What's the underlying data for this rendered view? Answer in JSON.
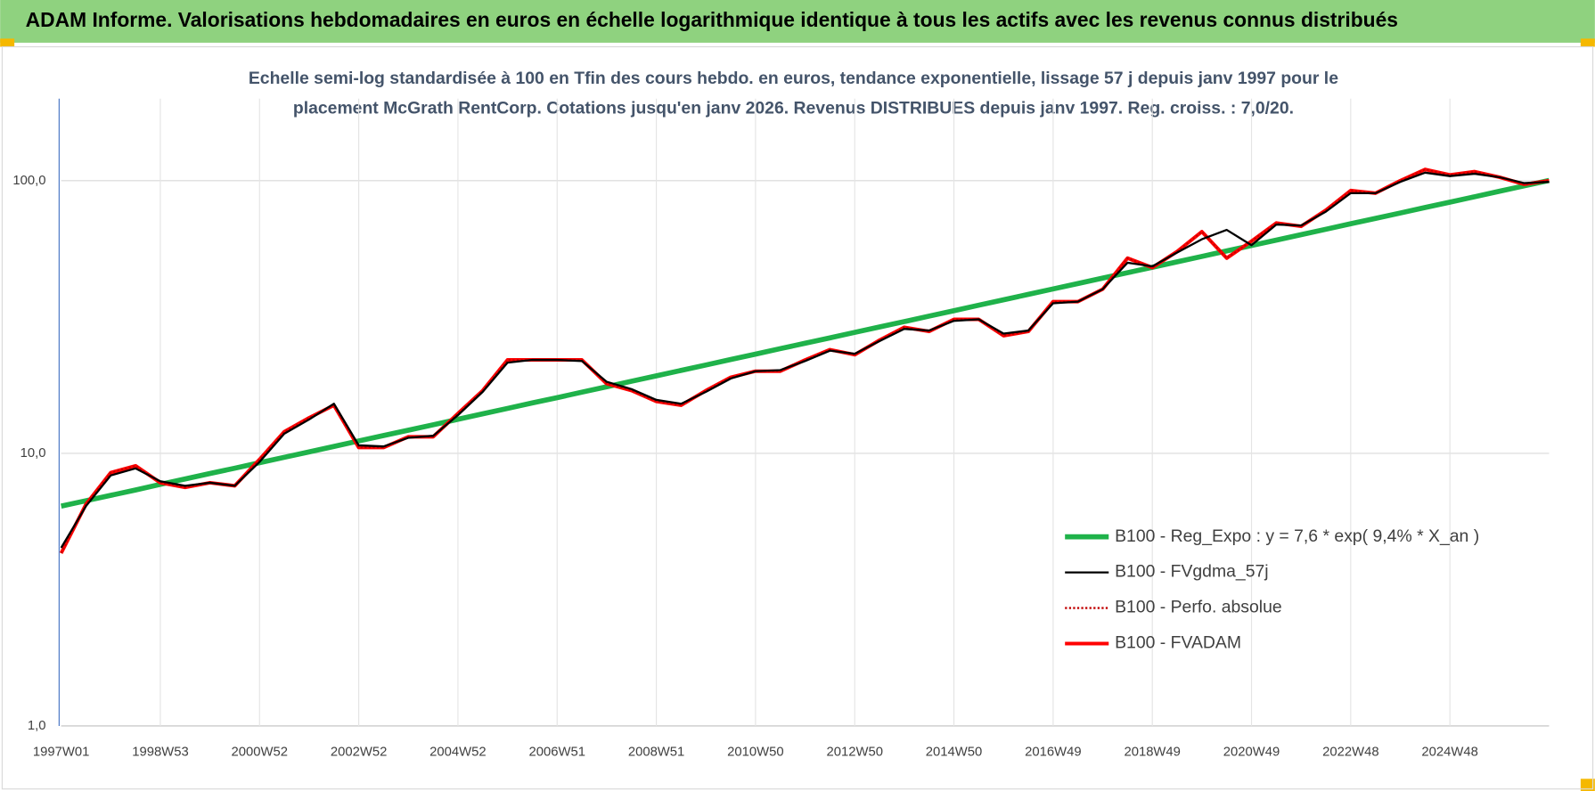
{
  "chart_data": {
    "type": "line",
    "title": "ADAM Informe. Valorisations hebdomadaires en euros en échelle logarithmique identique à tous les actifs avec les revenus connus distribués",
    "subtitle": [
      "Echelle semi-log standardisée à 100 en Tfin des cours hebdo. en euros, tendance exponentielle, lissage 57 j depuis janv 1997 pour le",
      "placement McGrath RentCorp. Cotations jusqu'en janv 2026. Revenus DISTRIBUES depuis janv 1997. Reg. croiss. : 7,0/20."
    ],
    "log_y": true,
    "grid": true,
    "legend": "lower right",
    "ylim": [
      1,
      200
    ],
    "yticks": [
      {
        "value": 1,
        "label": "1,0"
      },
      {
        "value": 10,
        "label": "10,0"
      },
      {
        "value": 100,
        "label": "100,0"
      }
    ],
    "categories": [
      "1997W01",
      null,
      null,
      null,
      "1998W53",
      null,
      null,
      null,
      "2000W52",
      null,
      null,
      null,
      "2002W52",
      null,
      null,
      null,
      "2004W52",
      null,
      null,
      null,
      "2006W51",
      null,
      null,
      null,
      "2008W51",
      null,
      null,
      null,
      "2010W50",
      null,
      null,
      null,
      "2012W50",
      null,
      null,
      null,
      "2014W50",
      null,
      null,
      null,
      "2016W49",
      null,
      null,
      null,
      "2018W49",
      null,
      null,
      null,
      "2020W49",
      null,
      null,
      null,
      "2022W48",
      null,
      null,
      null,
      "2024W48",
      null,
      null,
      null,
      null
    ],
    "series": [
      {
        "name": "B100 - Reg_Expo : y = 7,6 * exp( 9,4% *  X_an )",
        "color": "#1fb24a",
        "values": [
          6.4,
          6.7,
          7.01,
          7.34,
          7.69,
          8.05,
          8.43,
          8.82,
          9.24,
          9.67,
          10.12,
          10.6,
          11.1,
          11.62,
          12.16,
          12.73,
          13.33,
          13.96,
          14.61,
          15.3,
          16.01,
          16.77,
          17.55,
          18.38,
          19.24,
          20.14,
          21.09,
          22.08,
          23.11,
          24.2,
          25.33,
          26.52,
          27.77,
          29.07,
          30.43,
          31.86,
          33.36,
          34.92,
          36.56,
          38.28,
          40.07,
          41.95,
          43.92,
          45.98,
          48.14,
          50.4,
          52.76,
          55.24,
          57.83,
          60.54,
          63.38,
          66.35,
          69.47,
          72.72,
          76.13,
          79.7,
          83.44,
          87.36,
          91.45,
          95.74,
          100.2
        ]
      },
      {
        "name": "B100 - FVgdma_57j",
        "color": "#000000",
        "values": [
          4.5,
          6.4,
          8.3,
          8.8,
          7.9,
          7.6,
          7.8,
          7.6,
          9.3,
          11.8,
          13.3,
          15.2,
          10.7,
          10.6,
          11.4,
          11.6,
          13.8,
          16.8,
          21.5,
          22,
          22,
          21.8,
          18.3,
          17.2,
          15.7,
          15.2,
          16.8,
          18.8,
          20,
          20.2,
          21.8,
          23.8,
          23.2,
          25.8,
          28.6,
          28.2,
          30.6,
          31,
          27.5,
          28.2,
          35.5,
          36,
          40,
          50,
          48.5,
          54.5,
          61,
          66,
          58,
          69,
          68.5,
          77,
          90,
          90,
          99,
          107,
          104,
          106,
          103,
          98,
          99
        ]
      },
      {
        "name": "B100 - Perfo. absolue",
        "color": "#c00000",
        "dash": "dotted",
        "values": [
          4.3,
          6.5,
          8.5,
          9,
          7.8,
          7.5,
          7.8,
          7.6,
          9.5,
          12,
          13.5,
          15,
          10.5,
          10.5,
          11.5,
          11.5,
          14,
          17,
          22,
          22,
          22,
          22,
          18,
          17,
          15.5,
          15,
          17,
          19,
          20,
          20,
          22,
          24,
          23,
          26,
          29,
          28,
          31,
          31,
          27,
          28,
          36,
          36,
          40,
          52,
          48,
          55,
          65,
          52,
          60,
          70,
          68,
          78,
          92,
          90,
          100,
          110,
          105,
          108,
          103,
          97,
          100
        ]
      },
      {
        "name": "B100 - FVADAM",
        "color": "#ff0000",
        "values": [
          4.3,
          6.5,
          8.5,
          9,
          7.8,
          7.5,
          7.8,
          7.6,
          9.5,
          12,
          13.5,
          15,
          10.5,
          10.5,
          11.5,
          11.5,
          14,
          17,
          22,
          22,
          22,
          22,
          18,
          17,
          15.5,
          15,
          17,
          19,
          20,
          20,
          22,
          24,
          23,
          26,
          29,
          28,
          31,
          31,
          27,
          28,
          36,
          36,
          40,
          52,
          48,
          55,
          65,
          52,
          60,
          70,
          68,
          78,
          92,
          90,
          100,
          110,
          105,
          108,
          103,
          97,
          100
        ]
      }
    ]
  }
}
